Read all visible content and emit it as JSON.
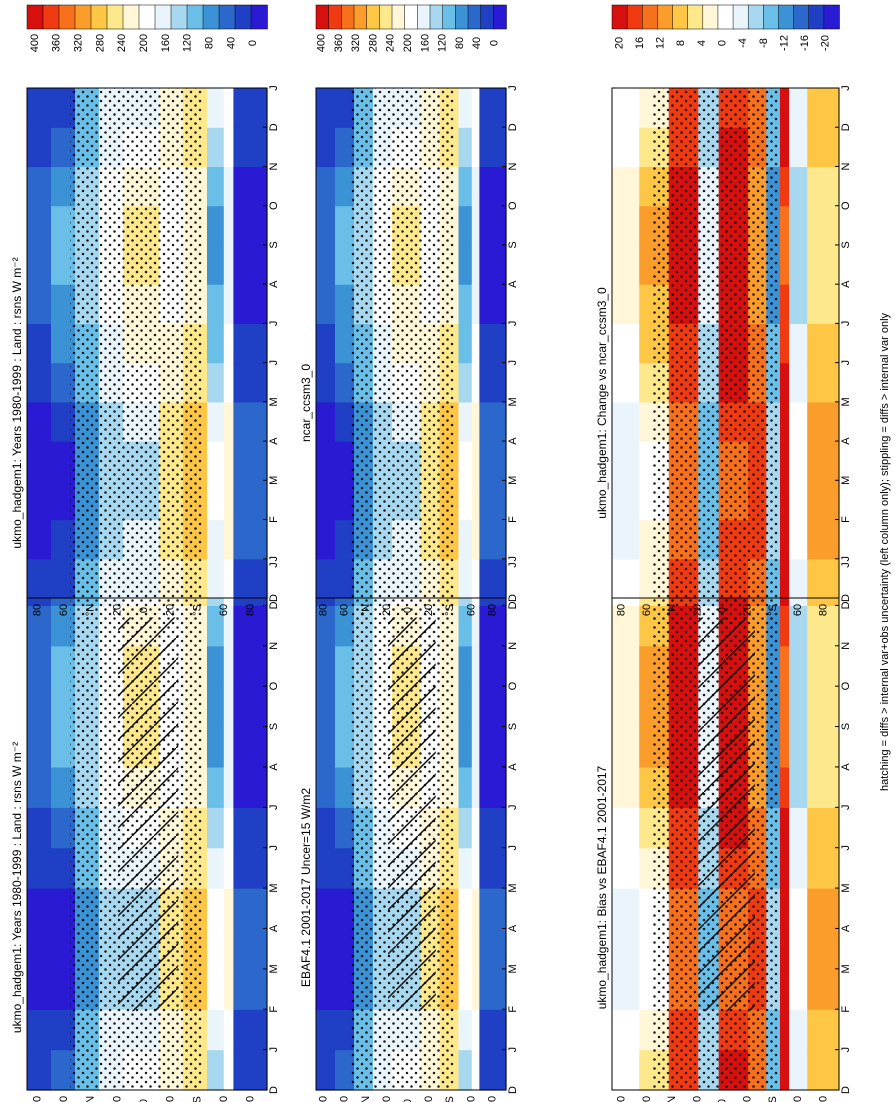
{
  "chart_data": {
    "type": "heatmap",
    "caption": "hatching = diffs > internal var+obs uncertainty (left column only); stippling = diffs > internal var only",
    "months": [
      "D",
      "J",
      "F",
      "M",
      "A",
      "M",
      "J",
      "J",
      "A",
      "S",
      "O",
      "N",
      "D",
      "J"
    ],
    "lat_ticks": [
      "80",
      "60",
      "°N",
      "20",
      "0",
      "20",
      "°S",
      "60",
      "80"
    ],
    "panels": [
      {
        "id": "p1",
        "title": "ukmo_hadgem1: Years 1980-1999 : Land : rsns W m⁻²",
        "kind": "abs",
        "hatch": true
      },
      {
        "id": "p2",
        "title": "ukmo_hadgem1: Years 1980-1999 : Land : rsns W m⁻²",
        "kind": "abs",
        "hatch": false
      },
      {
        "id": "p3",
        "title": "EBAF4.1 2001-2017 Uncer=15 W/m2",
        "kind": "abs",
        "hatch": true
      },
      {
        "id": "p4",
        "title": "ncar_ccsm3_0",
        "kind": "abs",
        "hatch": false
      },
      {
        "id": "p5",
        "title": "ukmo_hadgem1: Bias vs EBAF4.1 2001-2017",
        "kind": "diff",
        "hatch": true
      },
      {
        "id": "p6",
        "title": "ukmo_hadgem1: Change vs ncar_ccsm3_0",
        "kind": "diff",
        "hatch": false
      }
    ],
    "colorbars": {
      "abs": {
        "labels": [
          "400",
          "360",
          "320",
          "280",
          "240",
          "200",
          "160",
          "120",
          "80",
          "40",
          "0"
        ],
        "colors": [
          "#d7100f",
          "#ef3a12",
          "#f7701c",
          "#fb9d2a",
          "#fdc645",
          "#fde88c",
          "#fff7d8",
          "#ffffff",
          "#e9f4fb",
          "#a8d8ef",
          "#69bfe8",
          "#3b93d6",
          "#2c68cb",
          "#1f3fc4",
          "#2a1ad3"
        ]
      },
      "diff": {
        "labels": [
          "20",
          "16",
          "12",
          "8",
          "4",
          "0",
          "-4",
          "-8",
          "-12",
          "-16",
          "-20"
        ],
        "colors": [
          "#d7100f",
          "#ef3a12",
          "#f7701c",
          "#fb9d2a",
          "#fdc645",
          "#fde88c",
          "#fff7d8",
          "#ffffff",
          "#e9f4fb",
          "#a8d8ef",
          "#69bfe8",
          "#3b93d6",
          "#2c68cb",
          "#1f3fc4",
          "#2a1ad3"
        ]
      }
    }
  }
}
